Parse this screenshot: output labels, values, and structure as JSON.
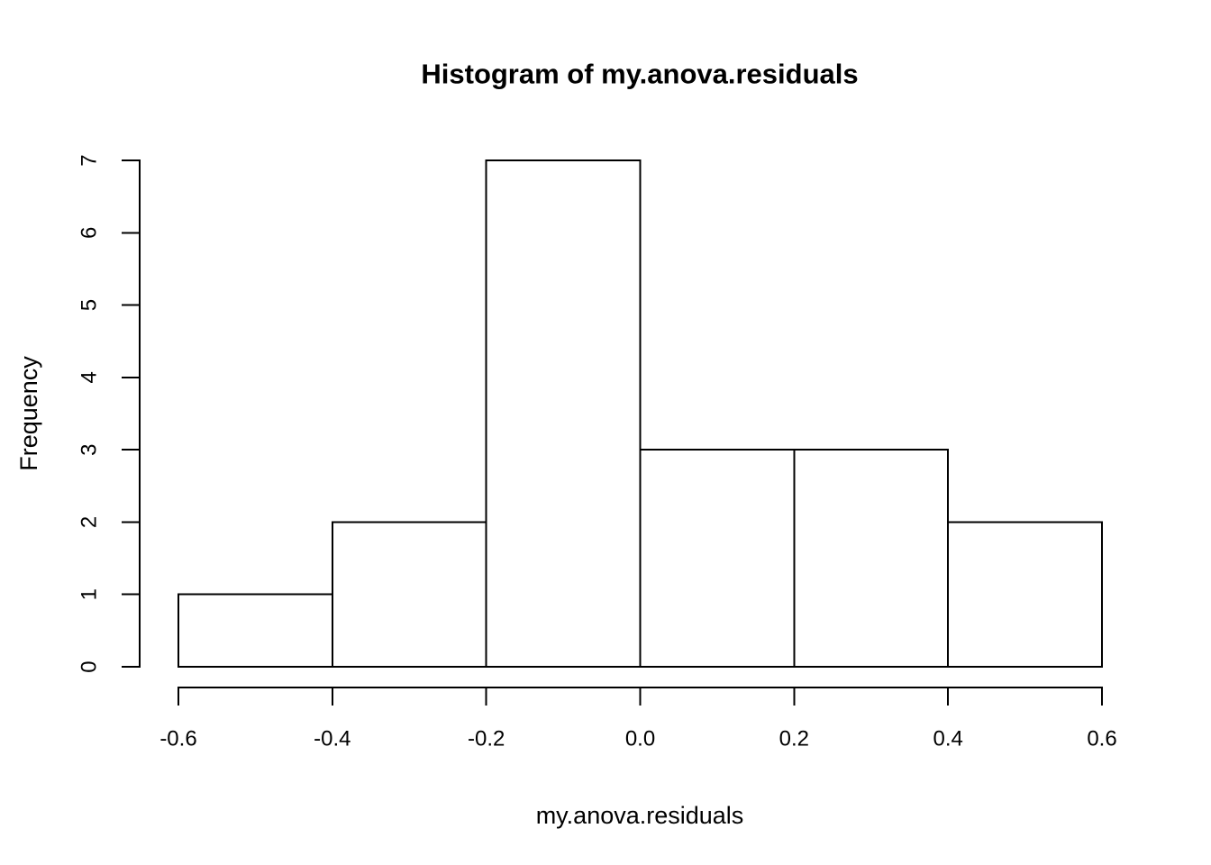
{
  "figure": {
    "background": "#FFFFFF"
  },
  "chart_data": {
    "type": "bar",
    "subtype": "histogram",
    "title": "Histogram of my.anova.residuals",
    "xlabel": "my.anova.residuals",
    "ylabel": "Frequency",
    "bin_edges": [
      -0.6,
      -0.4,
      -0.2,
      0.0,
      0.2,
      0.4,
      0.6
    ],
    "counts": [
      1,
      2,
      7,
      3,
      3,
      2
    ],
    "x_ticks": [
      -0.6,
      -0.4,
      -0.2,
      0.0,
      0.2,
      0.4,
      0.6
    ],
    "x_tick_labels": [
      "-0.6",
      "-0.4",
      "-0.2",
      "0.0",
      "0.2",
      "0.4",
      "0.6"
    ],
    "y_ticks": [
      0,
      1,
      2,
      3,
      4,
      5,
      6,
      7
    ],
    "y_tick_labels": [
      "0",
      "1",
      "2",
      "3",
      "4",
      "5",
      "6",
      "7"
    ],
    "xlim": [
      -0.6,
      0.6
    ],
    "ylim": [
      0,
      7
    ],
    "grid": false,
    "legend": "none",
    "bar_fill": "#FFFFFF",
    "bar_stroke": "#000000",
    "axis_color": "#000000",
    "text_color": "#000000"
  }
}
